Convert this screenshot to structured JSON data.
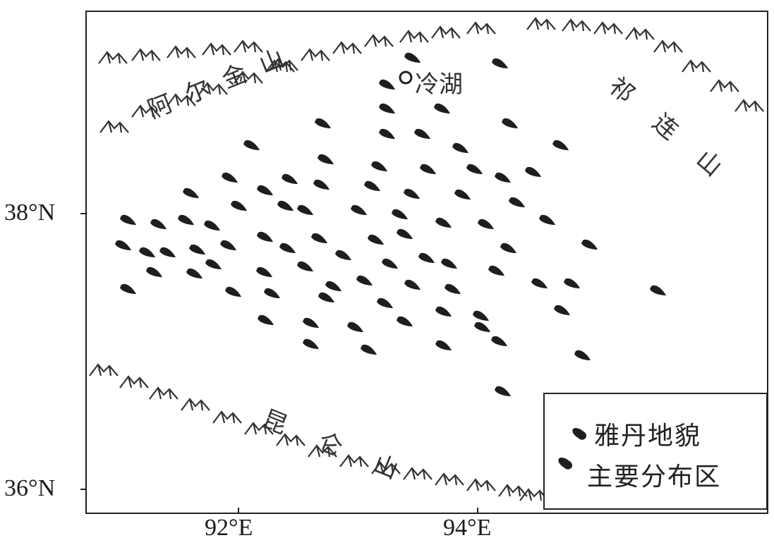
{
  "latitude_labels": {
    "lat_38": "38°N",
    "lat_36": "36°N"
  },
  "longitude_labels": {
    "lon_92": "92°E",
    "lon_94": "94°E"
  },
  "mountains": {
    "altun": "阿 尔 金 山",
    "qilian": "祁 连 山",
    "kunlun": "昆 仑 山"
  },
  "lake": {
    "name": "冷湖"
  },
  "legend": {
    "line1": "雅丹地貌",
    "line2": "主要分布区"
  },
  "colors": {
    "ink": "#1e1e1e",
    "frame": "#222222",
    "mountain": "#333333"
  },
  "icons": {
    "yardang": "yardang-landform-icon",
    "mountain": "mountain-peak-icon",
    "lake": "lake-circle-icon"
  }
}
